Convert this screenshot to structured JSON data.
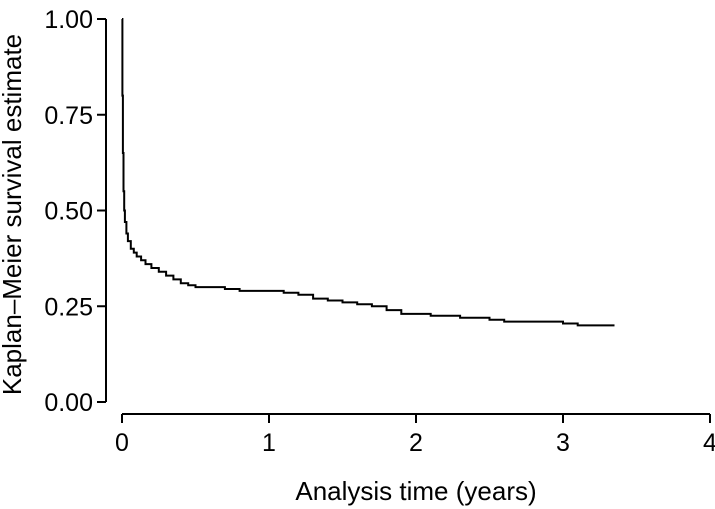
{
  "chart_data": {
    "type": "line",
    "title": "",
    "xlabel": "Analysis time (years)",
    "ylabel": "Kaplan–Meier survival estimate",
    "xlim": [
      0,
      4
    ],
    "ylim": [
      0,
      1
    ],
    "x_ticks": [
      0,
      1,
      2,
      3,
      4
    ],
    "x_tick_labels": [
      "0",
      "1",
      "2",
      "3",
      "4"
    ],
    "y_ticks": [
      0,
      0.25,
      0.5,
      0.75,
      1
    ],
    "y_tick_labels": [
      "0.00",
      "0.25",
      "0.50",
      "0.75",
      "1.00"
    ],
    "grid": false,
    "legend": "none",
    "line_color": "#000000",
    "series": [
      {
        "step": true,
        "x": [
          0,
          0.003,
          0.006,
          0.01,
          0.015,
          0.02,
          0.03,
          0.04,
          0.06,
          0.08,
          0.1,
          0.13,
          0.16,
          0.2,
          0.25,
          0.3,
          0.35,
          0.4,
          0.45,
          0.5,
          0.6,
          0.7,
          0.8,
          0.9,
          1.0,
          1.1,
          1.2,
          1.3,
          1.4,
          1.5,
          1.6,
          1.7,
          1.8,
          1.9,
          2.0,
          2.1,
          2.2,
          2.3,
          2.4,
          2.5,
          2.6,
          2.7,
          2.8,
          2.9,
          3.0,
          3.1,
          3.2,
          3.35
        ],
        "y": [
          1.0,
          0.8,
          0.65,
          0.55,
          0.5,
          0.47,
          0.44,
          0.42,
          0.4,
          0.39,
          0.38,
          0.37,
          0.36,
          0.35,
          0.34,
          0.33,
          0.32,
          0.31,
          0.305,
          0.3,
          0.3,
          0.295,
          0.29,
          0.29,
          0.29,
          0.285,
          0.28,
          0.27,
          0.265,
          0.26,
          0.255,
          0.25,
          0.24,
          0.23,
          0.23,
          0.225,
          0.225,
          0.22,
          0.22,
          0.215,
          0.21,
          0.21,
          0.21,
          0.21,
          0.205,
          0.2,
          0.2,
          0.2
        ]
      }
    ]
  }
}
